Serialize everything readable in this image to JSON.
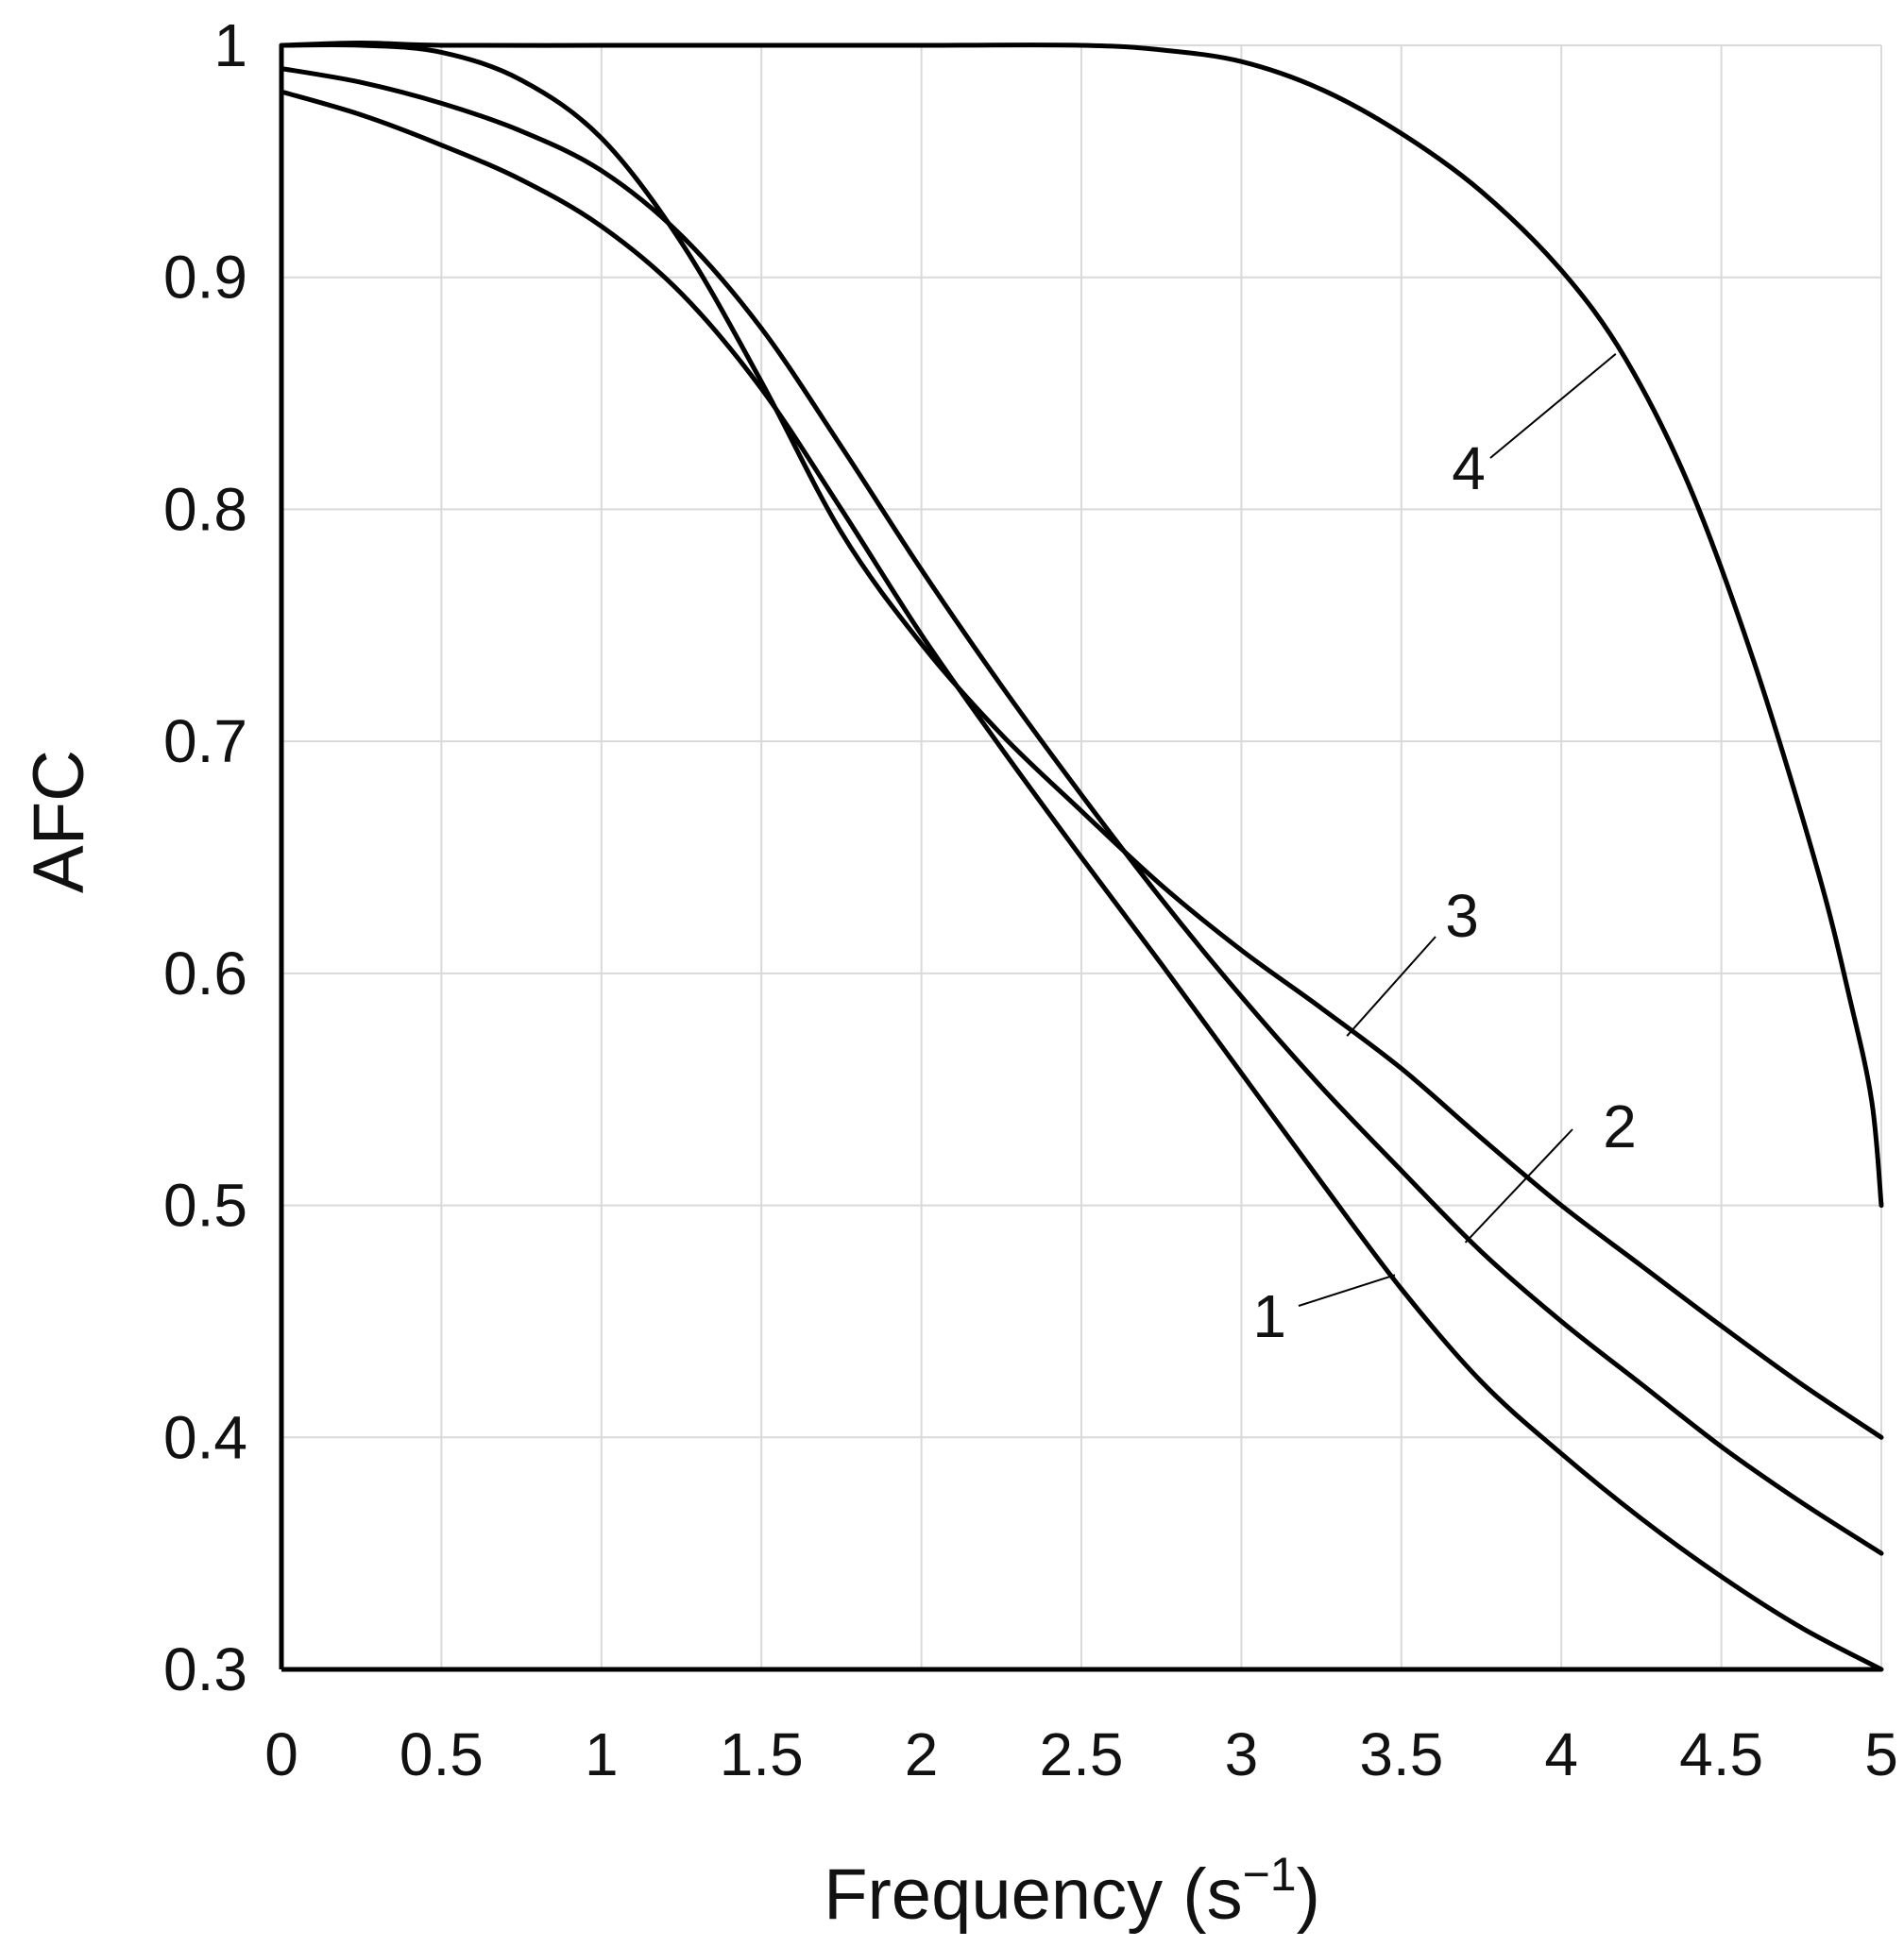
{
  "chart_data": {
    "type": "line",
    "title": "",
    "xlabel": "Frequency (s",
    "xlabel_sup": "−1",
    "xlabel_close": ")",
    "ylabel": "AFC",
    "xlim": [
      0,
      5
    ],
    "ylim": [
      0.3,
      1
    ],
    "xticks": [
      0,
      0.5,
      1,
      1.5,
      2,
      2.5,
      3,
      3.5,
      4,
      4.5,
      5
    ],
    "xtick_labels": [
      "0",
      "0.5",
      "1",
      "1.5",
      "2",
      "2.5",
      "3",
      "3.5",
      "4",
      "4.5",
      "5"
    ],
    "yticks": [
      0.3,
      0.4,
      0.5,
      0.6,
      0.7,
      0.8,
      0.9,
      1
    ],
    "ytick_labels": [
      "0.3",
      "0.4",
      "0.5",
      "0.6",
      "0.7",
      "0.8",
      "0.9",
      "1"
    ],
    "grid": true,
    "legend": "none",
    "line_color": "#000000",
    "grid_color": "#d9d9d9",
    "series": [
      {
        "name": "1",
        "x": [
          0,
          0.25,
          0.5,
          0.75,
          1,
          1.25,
          1.5,
          1.75,
          2,
          2.25,
          2.5,
          2.75,
          3,
          3.25,
          3.5,
          3.75,
          4,
          4.25,
          4.5,
          4.75,
          5
        ],
        "y": [
          0.98,
          0.97,
          0.957,
          0.942,
          0.922,
          0.893,
          0.852,
          0.8,
          0.746,
          0.697,
          0.65,
          0.604,
          0.557,
          0.51,
          0.464,
          0.424,
          0.393,
          0.365,
          0.34,
          0.318,
          0.3
        ]
      },
      {
        "name": "2",
        "x": [
          0,
          0.25,
          0.5,
          0.75,
          1,
          1.25,
          1.5,
          1.75,
          2,
          2.25,
          2.5,
          2.75,
          3,
          3.25,
          3.5,
          3.75,
          4,
          4.25,
          4.5,
          4.75,
          5
        ],
        "y": [
          0.99,
          0.984,
          0.975,
          0.963,
          0.946,
          0.918,
          0.878,
          0.827,
          0.774,
          0.724,
          0.677,
          0.632,
          0.59,
          0.551,
          0.515,
          0.48,
          0.45,
          0.423,
          0.396,
          0.372,
          0.35
        ]
      },
      {
        "name": "3",
        "x": [
          0,
          0.25,
          0.5,
          0.75,
          1,
          1.25,
          1.5,
          1.75,
          2,
          2.25,
          2.5,
          2.75,
          3,
          3.25,
          3.5,
          3.75,
          4,
          4.25,
          4.5,
          4.75,
          5
        ],
        "y": [
          1,
          1,
          0.997,
          0.985,
          0.96,
          0.915,
          0.855,
          0.79,
          0.742,
          0.703,
          0.67,
          0.638,
          0.61,
          0.585,
          0.559,
          0.529,
          0.5,
          0.474,
          0.448,
          0.423,
          0.4
        ]
      },
      {
        "name": "4",
        "x": [
          0,
          0.25,
          0.5,
          1,
          1.5,
          2,
          2.5,
          2.75,
          3,
          3.25,
          3.5,
          3.75,
          4,
          4.2,
          4.4,
          4.6,
          4.8,
          4.9,
          4.97,
          5
        ],
        "y": [
          1,
          1.001,
          1,
          1,
          1,
          1,
          1,
          0.998,
          0.993,
          0.981,
          0.962,
          0.937,
          0.903,
          0.865,
          0.81,
          0.735,
          0.645,
          0.59,
          0.545,
          0.5
        ]
      }
    ],
    "annotations": [
      {
        "text": "1",
        "series": "1"
      },
      {
        "text": "2",
        "series": "2"
      },
      {
        "text": "3",
        "series": "3"
      },
      {
        "text": "4",
        "series": "4"
      }
    ]
  }
}
